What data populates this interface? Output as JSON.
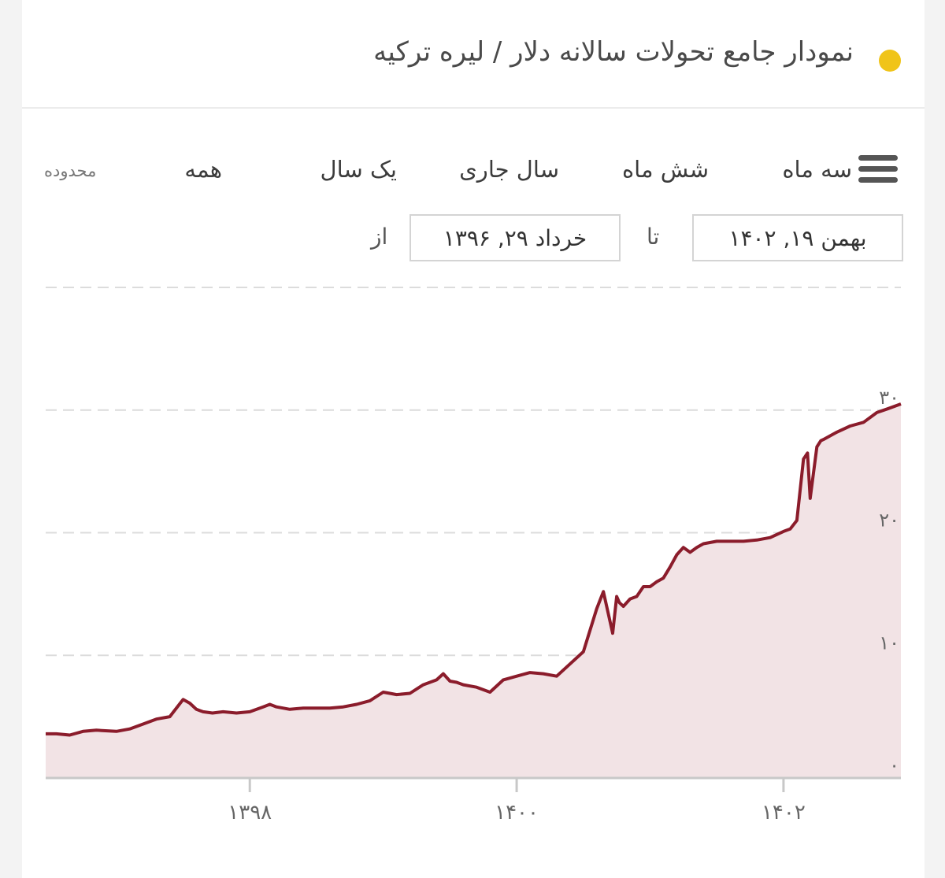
{
  "header": {
    "title": "نمودار جامع تحولات سالانه دلار / لیره ترکیه",
    "dot_color": "#f0c419"
  },
  "range_selector": {
    "zoom_label": "محدوده",
    "buttons": [
      "سه ماه",
      "شش ماه",
      "سال جاری",
      "یک سال",
      "همه"
    ],
    "from_label": "از",
    "to_label": "تا",
    "from_date": "خرداد ۲۹, ۱۳۹۶",
    "to_date": "بهمن ۱۹, ۱۴۰۲"
  },
  "colors": {
    "line": "#8b1c2b",
    "fill": "#f2e3e5",
    "grid": "#dcdcdc",
    "axis_text": "#666666"
  },
  "chart_data": {
    "type": "area",
    "title": "نمودار جامع تحولات سالانه دلار / لیره ترکیه",
    "xlabel": "",
    "ylabel": "",
    "x_range": [
      1396.47,
      1402.88
    ],
    "ylim": [
      0,
      40
    ],
    "y_ticks": [
      0,
      10,
      20,
      30
    ],
    "y_tick_labels": [
      "۰",
      "۱۰",
      "۲۰",
      "۳۰"
    ],
    "x_ticks": [
      1398,
      1400,
      1402
    ],
    "x_tick_labels": [
      "۱۳۹۸",
      "۱۴۰۰",
      "۱۴۰۲"
    ],
    "grid": true,
    "legend": "none",
    "series": [
      {
        "x": [
          1396.47,
          1396.55,
          1396.65,
          1396.75,
          1396.85,
          1397.0,
          1397.1,
          1397.2,
          1397.3,
          1397.4,
          1397.5,
          1397.55,
          1397.6,
          1397.65,
          1397.72,
          1397.8,
          1397.9,
          1398.0,
          1398.1,
          1398.15,
          1398.2,
          1398.3,
          1398.4,
          1398.5,
          1398.6,
          1398.7,
          1398.8,
          1398.9,
          1399.0,
          1399.05,
          1399.1,
          1399.2,
          1399.3,
          1399.4,
          1399.45,
          1399.5,
          1399.55,
          1399.6,
          1399.7,
          1399.8,
          1399.9,
          1400.0,
          1400.1,
          1400.2,
          1400.3,
          1400.4,
          1400.5,
          1400.6,
          1400.65,
          1400.72,
          1400.75,
          1400.77,
          1400.8,
          1400.85,
          1400.9,
          1400.95,
          1401.0,
          1401.05,
          1401.1,
          1401.15,
          1401.2,
          1401.25,
          1401.3,
          1401.35,
          1401.4,
          1401.5,
          1401.6,
          1401.7,
          1401.8,
          1401.9,
          1402.0,
          1402.05,
          1402.1,
          1402.15,
          1402.18,
          1402.2,
          1402.25,
          1402.28,
          1402.3,
          1402.4,
          1402.5,
          1402.6,
          1402.7,
          1402.78,
          1402.88
        ],
        "y": [
          3.6,
          3.6,
          3.5,
          3.8,
          3.9,
          3.8,
          4.0,
          4.4,
          4.8,
          5.0,
          6.4,
          6.1,
          5.6,
          5.4,
          5.3,
          5.4,
          5.3,
          5.4,
          5.8,
          6.0,
          5.8,
          5.6,
          5.7,
          5.7,
          5.7,
          5.8,
          6.0,
          6.3,
          7.0,
          6.9,
          6.8,
          6.9,
          7.6,
          8.0,
          8.5,
          7.9,
          7.8,
          7.6,
          7.4,
          7.0,
          8.0,
          8.3,
          8.6,
          8.5,
          8.3,
          9.3,
          10.3,
          13.8,
          15.2,
          11.8,
          14.8,
          14.3,
          14.0,
          14.6,
          14.8,
          15.6,
          15.6,
          16.0,
          16.3,
          17.2,
          18.2,
          18.8,
          18.4,
          18.8,
          19.1,
          19.3,
          19.3,
          19.3,
          19.4,
          19.6,
          20.1,
          20.3,
          21.0,
          26.0,
          26.5,
          22.8,
          27.0,
          27.5,
          27.6,
          28.2,
          28.7,
          29.0,
          29.8,
          30.1,
          30.5
        ]
      }
    ]
  }
}
